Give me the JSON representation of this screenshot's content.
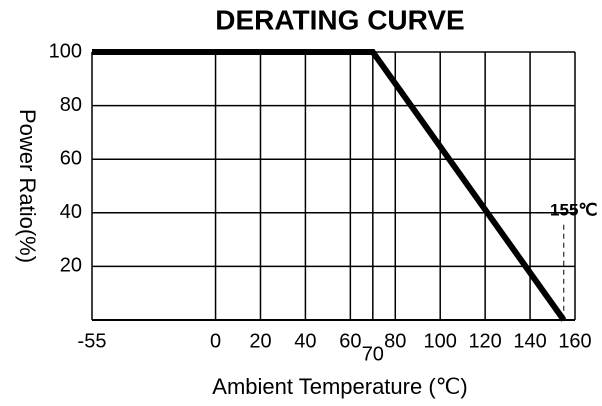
{
  "chart_data": {
    "type": "line",
    "title": "DERATING  CURVE",
    "xlabel": "Ambient Temperature (℃)",
    "ylabel": "Power Ratio(%)",
    "x": [
      -55,
      70,
      155
    ],
    "series": [
      {
        "name": "Power Ratio",
        "color": "#000000",
        "values": [
          100,
          100,
          0
        ]
      }
    ],
    "xlim": [
      -55,
      160
    ],
    "xticks": [
      -55,
      0,
      20,
      40,
      60,
      70,
      80,
      100,
      120,
      140,
      160
    ],
    "ylim": [
      0,
      100
    ],
    "yticks": [
      20,
      40,
      60,
      80,
      100
    ],
    "grid": true,
    "annotation": {
      "text": "155℃",
      "x": 155,
      "y": 40
    }
  }
}
